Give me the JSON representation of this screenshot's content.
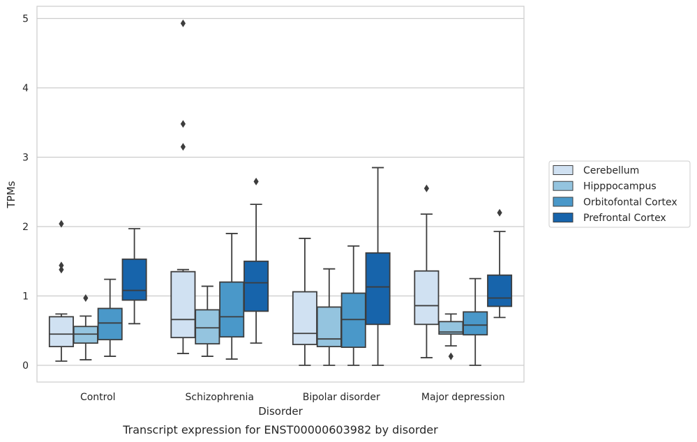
{
  "chart_data": {
    "type": "box",
    "categories": [
      "Control",
      "Schizophrenia",
      "Bipolar disorder",
      "Major depression"
    ],
    "xlabel": "Disorder",
    "ylabel": "TPMs",
    "caption": "Transcript expression for ENST00000603982 by disorder",
    "ylim": [
      -0.25,
      5.2
    ],
    "yticks": [
      0,
      1,
      2,
      3,
      4,
      5
    ],
    "grid": "horizontal",
    "legend_position": "right",
    "series": [
      {
        "name": "Cerebellum",
        "color": "#d0e1f2",
        "boxes": [
          {
            "whislo": 0.06,
            "q1": 0.27,
            "med": 0.45,
            "q3": 0.7,
            "whishi": 0.74,
            "fliers": [
              2.04,
              1.44,
              1.38
            ]
          },
          {
            "whislo": 0.17,
            "q1": 0.4,
            "med": 0.66,
            "q3": 1.35,
            "whishi": 1.38,
            "fliers": [
              4.93,
              3.48,
              3.15
            ]
          },
          {
            "whislo": 0.0,
            "q1": 0.3,
            "med": 0.46,
            "q3": 1.06,
            "whishi": 1.83,
            "fliers": []
          },
          {
            "whislo": 0.11,
            "q1": 0.59,
            "med": 0.86,
            "q3": 1.36,
            "whishi": 2.18,
            "fliers": [
              2.55
            ]
          }
        ]
      },
      {
        "name": "Hipppocampus",
        "color": "#94c4df",
        "boxes": [
          {
            "whislo": 0.08,
            "q1": 0.32,
            "med": 0.45,
            "q3": 0.56,
            "whishi": 0.71,
            "fliers": [
              0.97
            ]
          },
          {
            "whislo": 0.13,
            "q1": 0.31,
            "med": 0.54,
            "q3": 0.8,
            "whishi": 1.14,
            "fliers": []
          },
          {
            "whislo": 0.0,
            "q1": 0.27,
            "med": 0.38,
            "q3": 0.84,
            "whishi": 1.39,
            "fliers": []
          },
          {
            "whislo": 0.28,
            "q1": 0.45,
            "med": 0.48,
            "q3": 0.63,
            "whishi": 0.74,
            "fliers": [
              0.13
            ]
          }
        ]
      },
      {
        "name": "Orbitofontal Cortex",
        "color": "#4a98c9",
        "boxes": [
          {
            "whislo": 0.13,
            "q1": 0.37,
            "med": 0.61,
            "q3": 0.82,
            "whishi": 1.24,
            "fliers": []
          },
          {
            "whislo": 0.09,
            "q1": 0.41,
            "med": 0.7,
            "q3": 1.2,
            "whishi": 1.9,
            "fliers": []
          },
          {
            "whislo": 0.0,
            "q1": 0.26,
            "med": 0.66,
            "q3": 1.04,
            "whishi": 1.72,
            "fliers": []
          },
          {
            "whislo": 0.0,
            "q1": 0.44,
            "med": 0.58,
            "q3": 0.77,
            "whishi": 1.25,
            "fliers": []
          }
        ]
      },
      {
        "name": "Prefrontal Cortex",
        "color": "#1764ab",
        "boxes": [
          {
            "whislo": 0.6,
            "q1": 0.94,
            "med": 1.08,
            "q3": 1.53,
            "whishi": 1.97,
            "fliers": []
          },
          {
            "whislo": 0.32,
            "q1": 0.78,
            "med": 1.19,
            "q3": 1.5,
            "whishi": 2.32,
            "fliers": [
              2.65
            ]
          },
          {
            "whislo": 0.0,
            "q1": 0.59,
            "med": 1.13,
            "q3": 1.62,
            "whishi": 2.85,
            "fliers": []
          },
          {
            "whislo": 0.69,
            "q1": 0.85,
            "med": 0.97,
            "q3": 1.3,
            "whishi": 1.93,
            "fliers": [
              2.2
            ]
          }
        ]
      }
    ]
  }
}
